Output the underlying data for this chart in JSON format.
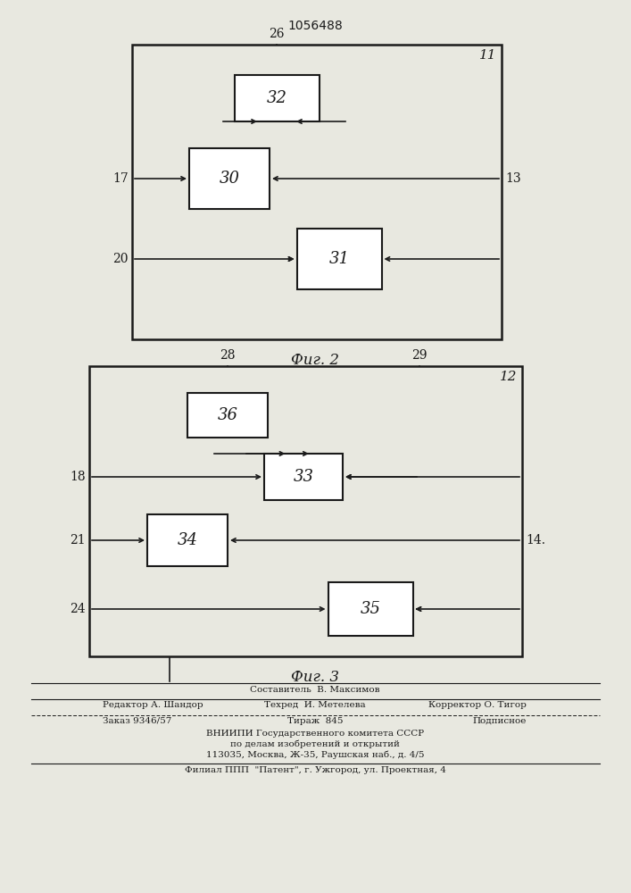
{
  "title": "1056488",
  "fig2_label": "Фиг. 2",
  "fig3_label": "Фиг. 3",
  "fig2_outer_label": "11",
  "fig3_outer_label": "12",
  "fig2_input26": "26",
  "fig2_input17": "17",
  "fig2_input20": "20",
  "fig2_output13": "13",
  "fig2_box30": "30",
  "fig2_box31": "31",
  "fig2_box32": "32",
  "fig3_input28": "28",
  "fig3_input29": "29",
  "fig3_input18": "18",
  "fig3_input21": "21",
  "fig3_input24": "24",
  "fig3_output14": "14",
  "fig3_box33": "33",
  "fig3_box34": "34",
  "fig3_box35": "35",
  "fig3_box36": "36",
  "bg_color": "#e8e8e0",
  "box_color": "#ffffff",
  "line_color": "#1a1a1a",
  "footer_line1": "Составитель  В. Максимов",
  "footer_line2_left": "Редактор А. Шандор",
  "footer_line2_mid": "Техред  И. Метелева",
  "footer_line2_right": "Корректор О. Тигор",
  "footer_line3_left": "Заказ 9346/57",
  "footer_line3_mid": "Тираж  845",
  "footer_line3_right": "Подписное",
  "footer_line4": "ВНИИПИ Государственного комитета СССР",
  "footer_line5": "по делам изобретений и открытий",
  "footer_line6": "113035, Москва, Ж-35, Раушская наб., д. 4/5",
  "footer_line7": "Филиал ППП  \"Патент\", г. Ужгород, ул. Проектная, 4"
}
